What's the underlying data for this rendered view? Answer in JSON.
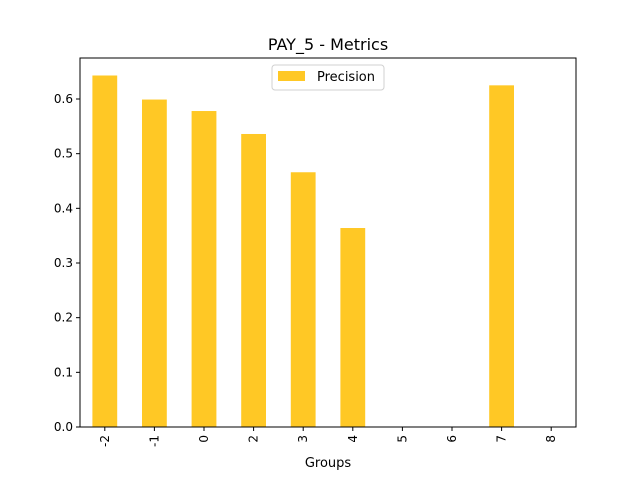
{
  "chart_data": {
    "type": "bar",
    "title": "PAY_5 - Metrics",
    "xlabel": "Groups",
    "ylabel": "",
    "categories": [
      "-2",
      "-1",
      "0",
      "2",
      "3",
      "4",
      "5",
      "6",
      "7",
      "8"
    ],
    "series": [
      {
        "name": "Precision",
        "values": [
          0.643,
          0.599,
          0.578,
          0.536,
          0.466,
          0.364,
          0,
          0,
          0.625,
          0
        ],
        "color": "#ffc825"
      }
    ],
    "ylim": [
      0,
      0.675
    ],
    "yticks": [
      "0.0",
      "0.1",
      "0.2",
      "0.3",
      "0.4",
      "0.5",
      "0.6"
    ],
    "grid": false,
    "legend_position": "top-center",
    "xtick_rotation": 90
  }
}
